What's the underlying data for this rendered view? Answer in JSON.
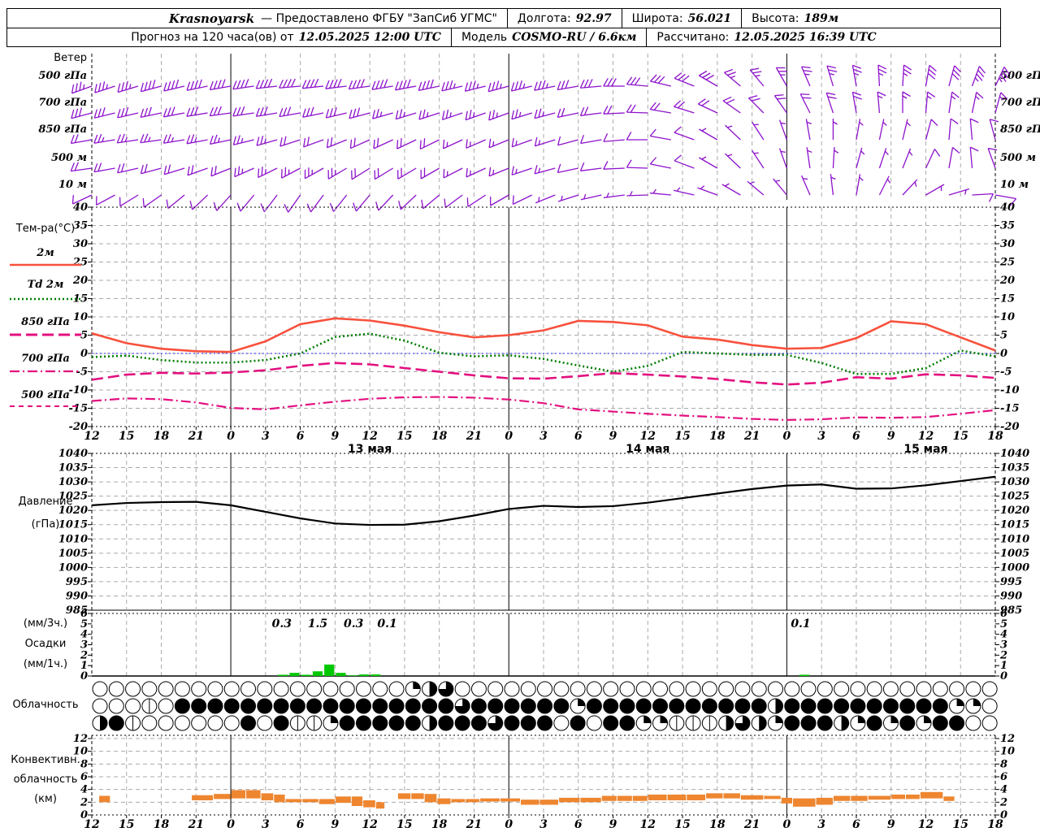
{
  "header": {
    "station": "Krasnoyarsk",
    "provider": "— Предоставлено ФГБУ \"ЗапСиб УГМС\"",
    "lon_label": "Долгота:",
    "lon": "92.97",
    "lat_label": "Широта:",
    "lat": "56.021",
    "alt_label": "Высота:",
    "alt": "189м",
    "forecast_label": "Прогноз на 120 часа(ов) от",
    "forecast_start": "12.05.2025 12:00 UTC",
    "model_label": "Модель",
    "model": "COSMO-RU / 6.6км",
    "computed_label": "Рассчитано:",
    "computed": "12.05.2025 16:39 UTC"
  },
  "colors": {
    "barb": "#8d12cc",
    "t2m": "#f8513d",
    "td2m": "#007c00",
    "pink": "#e3107f",
    "zero_line": "#2222ff",
    "pressure": "#000000",
    "precip": "#00c800",
    "convective": "#ee8630",
    "grid": "#a9a9a9",
    "axis": "#000000"
  },
  "wind": {
    "title": "Ветер",
    "levels": [
      "500 гПа",
      "700 гПа",
      "850 гПа",
      "500 м",
      "10 м"
    ]
  },
  "temperature": {
    "title": "Тем-ра(°C)",
    "legend": [
      "2м",
      "Td  2м",
      "850 гПа",
      "700 гПа",
      "500 гПа"
    ]
  },
  "pressure_labels": {
    "l1": "Давление",
    "l2": "(гПа)"
  },
  "precip_labels": {
    "l1": "(мм/3ч.)",
    "l2": "Осадки",
    "l3": "(мм/1ч.)"
  },
  "cloud_label": "Облачность",
  "convective_labels": {
    "l1": "Конвективн.",
    "l2": "облачность",
    "l3": "(км)"
  },
  "axes": {
    "tick_step_h": 3,
    "tick_hours": [
      12,
      15,
      18,
      21,
      0,
      3,
      6,
      9,
      12,
      15,
      18,
      21,
      0,
      3,
      6,
      9,
      12,
      15,
      18,
      21,
      0,
      3,
      6,
      9,
      12,
      15,
      18
    ],
    "day_lines_t": [
      12,
      36,
      60
    ],
    "dates": [
      {
        "t": 24,
        "text": "13 мая"
      },
      {
        "t": 48,
        "text": "14 мая"
      },
      {
        "t": 72,
        "text": "15 мая"
      }
    ]
  },
  "chart_data": [
    {
      "id": "temperature",
      "type": "line",
      "title": "Тем-ра(°C)",
      "ylim": [
        -20,
        40
      ],
      "yticks": [
        40,
        35,
        30,
        25,
        20,
        15,
        10,
        5,
        0,
        -5,
        -10,
        -15,
        -20
      ],
      "x_step_h": 3,
      "series": [
        {
          "name": "2м",
          "style": "solid",
          "colorKey": "t2m",
          "values": [
            5.5,
            2.8,
            1.3,
            0.6,
            0.4,
            3.3,
            8.0,
            9.6,
            9.0,
            7.6,
            5.8,
            4.4,
            5.0,
            6.3,
            8.9,
            8.6,
            7.7,
            4.6,
            3.8,
            2.3,
            1.3,
            1.5,
            4.2,
            8.8,
            8.0,
            4.4,
            0.8
          ]
        },
        {
          "name": "Td 2м",
          "style": "dot",
          "colorKey": "td2m",
          "values": [
            -1.0,
            -0.6,
            -1.8,
            -2.5,
            -2.5,
            -1.8,
            0.0,
            4.5,
            5.4,
            3.5,
            0.2,
            -0.8,
            -0.5,
            -1.5,
            -3.3,
            -5.0,
            -3.4,
            0.4,
            0.0,
            -0.4,
            -0.4,
            -2.6,
            -5.6,
            -5.6,
            -4.0,
            0.8,
            -0.8
          ]
        },
        {
          "name": "850 гПа",
          "style": "longdash",
          "colorKey": "pink",
          "values": [
            -7.2,
            -5.8,
            -5.3,
            -5.5,
            -5.2,
            -4.6,
            -3.4,
            -2.6,
            -3.0,
            -4.0,
            -5.0,
            -6.0,
            -6.8,
            -6.9,
            -6.2,
            -5.4,
            -5.8,
            -6.3,
            -7.0,
            -7.9,
            -8.5,
            -8.0,
            -6.5,
            -6.9,
            -5.7,
            -6.0,
            -6.7
          ]
        },
        {
          "name": "700 гПа",
          "style": "dashdot",
          "colorKey": "pink",
          "values": [
            -13.0,
            -12.3,
            -12.5,
            -13.4,
            -14.9,
            -15.3,
            -14.2,
            -13.2,
            -12.4,
            -12.0,
            -11.9,
            -12.1,
            -12.6,
            -13.6,
            -15.3,
            -15.9,
            -16.5,
            -17.0,
            -17.4,
            -17.9,
            -18.2,
            -18.0,
            -17.5,
            -17.6,
            -17.4,
            -16.5,
            -15.5
          ]
        }
      ],
      "note": "500 гПа series below -20°C, off scale"
    },
    {
      "id": "pressure",
      "type": "line",
      "ylabel": "Давление (гПа)",
      "ylim": [
        985,
        1040
      ],
      "yticks": [
        1040,
        1035,
        1030,
        1025,
        1020,
        1015,
        1010,
        1005,
        1000,
        995,
        990,
        985
      ],
      "x_step_h": 3,
      "values": [
        1021.8,
        1022.6,
        1022.9,
        1023.0,
        1021.8,
        1019.5,
        1017.2,
        1015.4,
        1014.9,
        1015.0,
        1016.2,
        1018.2,
        1020.5,
        1021.6,
        1021.2,
        1021.5,
        1022.7,
        1024.3,
        1025.9,
        1027.5,
        1028.7,
        1029.1,
        1027.6,
        1027.7,
        1028.8,
        1030.3,
        1031.8
      ]
    },
    {
      "id": "precip_1h",
      "type": "bar",
      "ylim": [
        0,
        6
      ],
      "yticks": [
        6,
        5,
        4,
        3,
        2,
        1,
        0
      ],
      "bars": [
        {
          "t": 16,
          "v": 0.12
        },
        {
          "t": 17,
          "v": 0.3
        },
        {
          "t": 18,
          "v": 0.12
        },
        {
          "t": 19,
          "v": 0.45
        },
        {
          "t": 20,
          "v": 1.1
        },
        {
          "t": 21,
          "v": 0.3
        },
        {
          "t": 22,
          "v": 0.06
        },
        {
          "t": 23,
          "v": 0.15
        },
        {
          "t": 24,
          "v": 0.15
        },
        {
          "t": 61,
          "v": 0.12
        }
      ],
      "labels_3h": [
        {
          "t": 16.4,
          "text": "0.3"
        },
        {
          "t": 19.5,
          "text": "1.5"
        },
        {
          "t": 22.6,
          "text": "0.3"
        },
        {
          "t": 25.5,
          "text": "0.1"
        },
        {
          "t": 61.2,
          "text": "0.1"
        }
      ]
    },
    {
      "id": "cloud_octas",
      "type": "symbol-rows",
      "legend": "0=clear 1=trace 2=quarter 3=half 4=threequarter 5=overcast",
      "rows": [
        "0000000000000000000234000000000000000000000000000000000",
        "0001055555555555555555455555525555555555535555555555220",
        "3510000005051125555535554555050552211134325553252525500"
      ]
    },
    {
      "id": "convective_cloud",
      "type": "bar-ranges",
      "ylim": [
        0,
        12
      ],
      "yticks": [
        12,
        10,
        8,
        6,
        4,
        2,
        0
      ],
      "segments": [
        [
          0.6,
          1.6,
          2.0,
          3.0
        ],
        [
          8.6,
          10.5,
          2.3,
          3.1
        ],
        [
          10.5,
          12.0,
          2.5,
          3.3
        ],
        [
          12.0,
          14.6,
          2.6,
          3.9
        ],
        [
          14.6,
          15.7,
          2.3,
          3.4
        ],
        [
          15.7,
          16.7,
          2.0,
          3.2
        ],
        [
          16.7,
          19.6,
          2.0,
          2.5
        ],
        [
          19.6,
          21.0,
          1.7,
          2.5
        ],
        [
          21.0,
          22.4,
          1.9,
          2.9
        ],
        [
          22.4,
          23.4,
          1.4,
          2.9
        ],
        [
          23.4,
          24.5,
          1.2,
          2.3
        ],
        [
          24.5,
          25.3,
          1.0,
          2.0
        ],
        [
          26.4,
          28.7,
          2.5,
          3.4
        ],
        [
          28.7,
          29.8,
          2.0,
          3.3
        ],
        [
          29.8,
          31.0,
          1.7,
          2.6
        ],
        [
          31.0,
          33.5,
          2.0,
          2.5
        ],
        [
          33.5,
          37.0,
          2.1,
          2.6
        ],
        [
          37.0,
          40.3,
          1.6,
          2.4
        ],
        [
          40.3,
          44.0,
          2.0,
          2.7
        ],
        [
          44.0,
          48.0,
          2.2,
          3.0
        ],
        [
          48.0,
          53.0,
          2.3,
          3.2
        ],
        [
          53.0,
          56.0,
          2.6,
          3.4
        ],
        [
          56.0,
          58.0,
          2.4,
          3.1
        ],
        [
          58.0,
          59.5,
          2.5,
          3.0
        ],
        [
          59.5,
          60.5,
          1.8,
          2.7
        ],
        [
          60.5,
          62.5,
          1.3,
          2.6
        ],
        [
          62.5,
          64.0,
          1.6,
          2.7
        ],
        [
          64.0,
          67.0,
          2.2,
          3.0
        ],
        [
          67.0,
          69.0,
          2.4,
          3.0
        ],
        [
          69.0,
          71.5,
          2.5,
          3.2
        ],
        [
          71.5,
          73.5,
          2.6,
          3.6
        ],
        [
          73.5,
          74.5,
          2.2,
          2.9
        ]
      ]
    },
    {
      "id": "wind_barbs",
      "type": "wind-barbs",
      "t_step": 6,
      "levels": [
        "500 гПа",
        "700 гПа",
        "850 гПа",
        "500 м",
        "10 м"
      ],
      "dir": {
        "500 гПа": [
          250,
          255,
          260,
          265,
          262,
          258,
          255,
          260,
          275,
          300,
          330,
          350,
          370,
          385
        ],
        "700 гПа": [
          255,
          258,
          262,
          260,
          255,
          252,
          250,
          258,
          272,
          295,
          325,
          350,
          365,
          375
        ],
        "850 гПа": [
          260,
          262,
          258,
          252,
          246,
          244,
          248,
          255,
          270,
          300,
          340,
          370,
          375,
          345
        ],
        "500 м": [
          262,
          255,
          248,
          242,
          238,
          240,
          248,
          258,
          272,
          300,
          340,
          375,
          385,
          340
        ],
        "10 м": [
          245,
          235,
          222,
          215,
          220,
          230,
          240,
          252,
          268,
          290,
          320,
          370,
          420,
          460
        ]
      },
      "spd_kt": {
        "500 гПа": [
          35,
          38,
          40,
          42,
          40,
          38,
          35,
          32,
          30,
          28,
          25,
          25,
          28,
          35
        ],
        "700 гПа": [
          28,
          30,
          32,
          30,
          28,
          26,
          25,
          22,
          20,
          20,
          18,
          18,
          15,
          15
        ],
        "850 гПа": [
          22,
          24,
          25,
          22,
          20,
          18,
          15,
          12,
          10,
          7,
          5,
          6,
          8,
          10
        ],
        "500 м": [
          18,
          20,
          22,
          25,
          22,
          18,
          15,
          12,
          10,
          7,
          5,
          6,
          8,
          10
        ],
        "10 м": [
          8,
          10,
          12,
          12,
          10,
          9,
          8,
          7,
          6,
          5,
          5,
          5,
          6,
          9
        ]
      }
    }
  ]
}
